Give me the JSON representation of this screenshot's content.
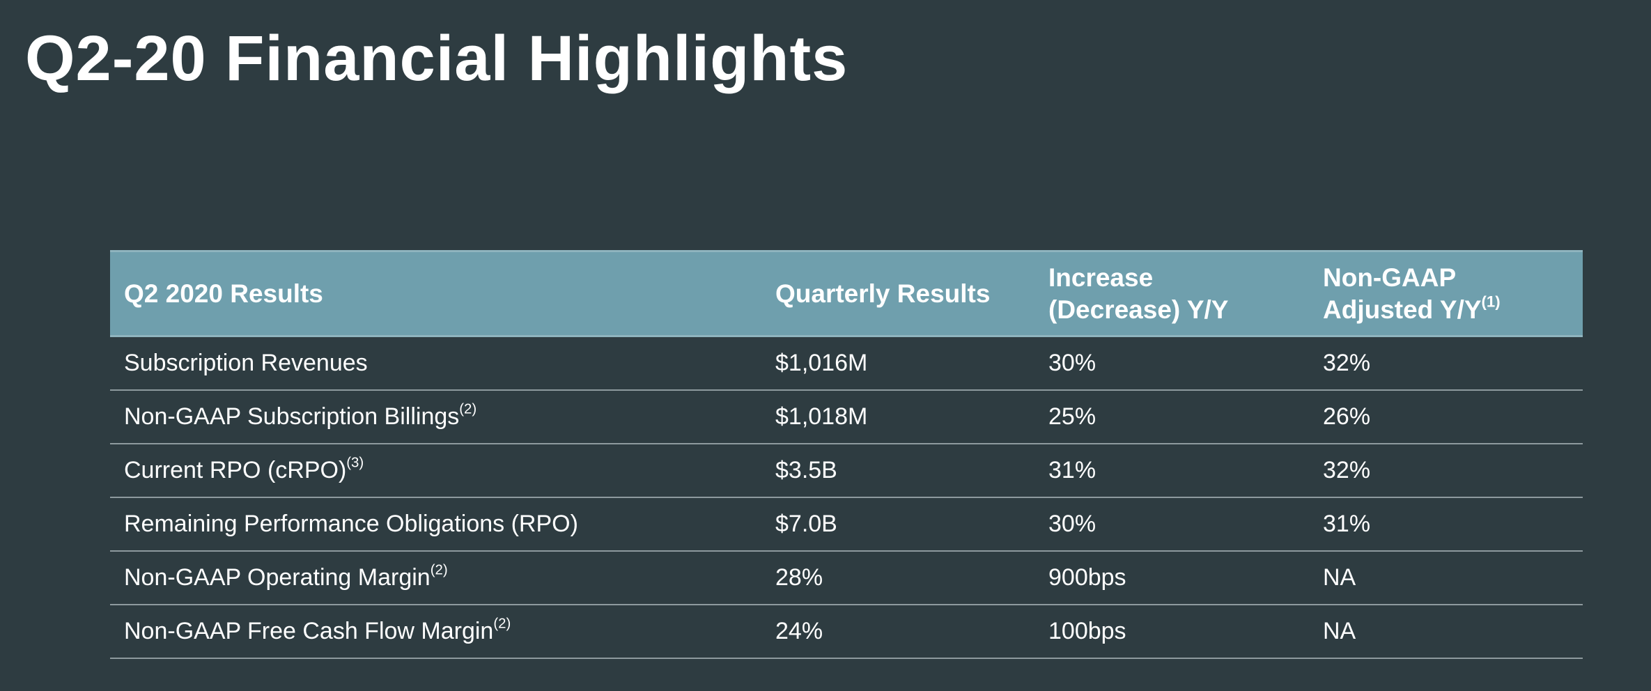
{
  "title": "Q2-20 Financial Highlights",
  "table": {
    "headers": {
      "metric": "Q2 2020 Results",
      "quarterly": "Quarterly Results",
      "increase_line1": "Increase",
      "increase_line2": "(Decrease) Y/Y",
      "nongaap_line1": "Non-GAAP",
      "nongaap_line2": "Adjusted Y/Y",
      "nongaap_note": "(1)"
    },
    "rows": [
      {
        "label": "Subscription Revenues",
        "note": "",
        "quarterly": "$1,016M",
        "yoy": "30%",
        "adjusted": "32%"
      },
      {
        "label": "Non-GAAP Subscription Billings",
        "note": "(2)",
        "quarterly": "$1,018M",
        "yoy": "25%",
        "adjusted": "26%"
      },
      {
        "label": "Current RPO (cRPO)",
        "note": "(3)",
        "quarterly": "$3.5B",
        "yoy": "31%",
        "adjusted": "32%"
      },
      {
        "label": "Remaining Performance Obligations (RPO)",
        "note": "",
        "quarterly": "$7.0B",
        "yoy": "30%",
        "adjusted": "31%"
      },
      {
        "label": "Non-GAAP Operating Margin",
        "note": "(2)",
        "quarterly": "28%",
        "yoy": "900bps",
        "adjusted": "NA"
      },
      {
        "label": "Non-GAAP Free Cash Flow Margin",
        "note": "(2)",
        "quarterly": "24%",
        "yoy": "100bps",
        "adjusted": "NA"
      }
    ]
  },
  "colors": {
    "background": "#2e3c41",
    "header_fill": "#6f9fad",
    "text": "#ffffff",
    "row_divider": "#8e9a9e"
  }
}
